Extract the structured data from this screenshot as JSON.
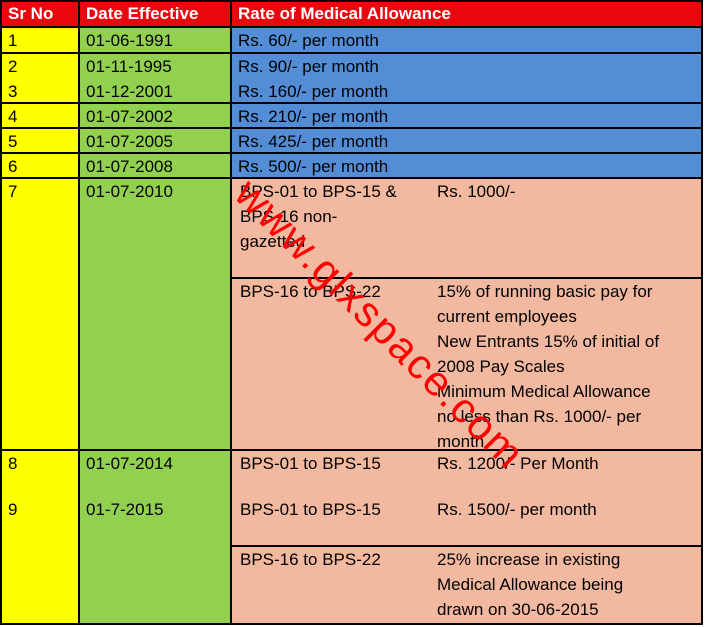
{
  "header": {
    "sr_no": "Sr No",
    "date_effective": "Date Effective",
    "rate": "Rate of Medical Allowance"
  },
  "simple_rows": [
    {
      "sr": "1",
      "date": "01-06-1991",
      "rate": "Rs. 60/- per month"
    },
    {
      "sr": "2",
      "date": "01-11-1995",
      "rate": "Rs. 90/- per month"
    },
    {
      "sr": "3",
      "date": "01-12-2001",
      "rate": "Rs. 160/- per month"
    },
    {
      "sr": "4",
      "date": "01-07-2002",
      "rate": "Rs. 210/- per month"
    },
    {
      "sr": "5",
      "date": "01-07-2005",
      "rate": "Rs. 425/- per month"
    },
    {
      "sr": "6",
      "date": "01-07-2008",
      "rate": "Rs. 500/- per month"
    }
  ],
  "row7": {
    "sr": "7",
    "date": "01-07-2010",
    "a_scale": [
      "BPS-01 to BPS-15 &",
      "BPS-16 non-",
      "gazetted"
    ],
    "a_rate": "Rs. 1000/-",
    "b_scale": "BPS-16 to BPS-22",
    "b_rate": [
      "15% of running basic pay for",
      "current employees",
      "New Entrants 15% of initial of",
      "2008 Pay Scales",
      "Minimum Medical Allowance",
      "no less than Rs. 1000/- per",
      "month"
    ]
  },
  "row8": {
    "sr": "8",
    "date": "01-07-2014",
    "scale": "BPS-01 to BPS-15",
    "rate": "Rs. 1200/- Per Month"
  },
  "row9": {
    "sr": "9",
    "date": "01-7-2015",
    "a_scale": "BPS-01 to BPS-15",
    "a_rate": "Rs. 1500/- per month",
    "b_scale": "BPS-16 to BPS-22",
    "b_rate": [
      "25% increase in existing",
      "Medical Allowance being",
      "drawn on 30-06-2015"
    ]
  },
  "watermark": "www.glxspace.com",
  "colors": {
    "header": "#e8070d",
    "sr_column": "#ffff00",
    "date_column": "#92d050",
    "rate_blue": "#538dd5",
    "rate_peach": "#f2b9a0",
    "watermark": "#ff0000"
  }
}
